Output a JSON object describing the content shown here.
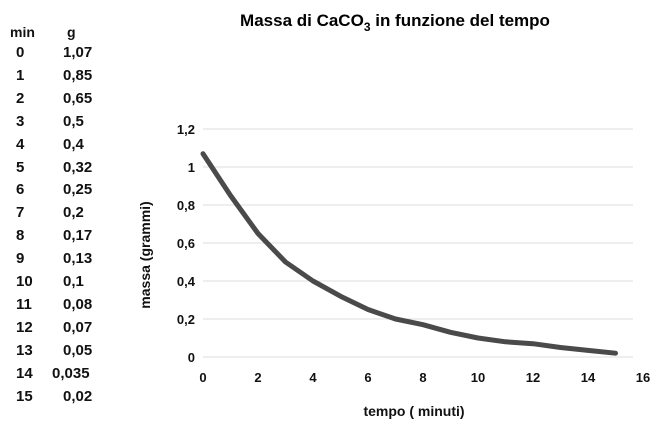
{
  "table": {
    "headers": [
      "min",
      "g"
    ],
    "rows": [
      [
        "0",
        "1,07"
      ],
      [
        "1",
        "0,85"
      ],
      [
        "2",
        "0,65"
      ],
      [
        "3",
        "0,5"
      ],
      [
        "4",
        "0,4"
      ],
      [
        "5",
        "0,32"
      ],
      [
        "6",
        "0,25"
      ],
      [
        "7",
        "0,2"
      ],
      [
        "8",
        "0,17"
      ],
      [
        "9",
        "0,13"
      ],
      [
        "10",
        "0,1"
      ],
      [
        "11",
        "0,08"
      ],
      [
        "12",
        "0,07"
      ],
      [
        "13",
        "0,05"
      ],
      [
        "14",
        "0,035"
      ],
      [
        "15",
        "0,02"
      ]
    ]
  },
  "chart_data": {
    "type": "line",
    "title_parts": [
      "Massa di CaCO",
      "3",
      " in funzione del tempo"
    ],
    "xlabel": "tempo ( minuti)",
    "ylabel": "massa (grammi)",
    "xlim": [
      0,
      16
    ],
    "ylim": [
      0,
      1.2
    ],
    "x_ticks": [
      "0",
      "2",
      "4",
      "6",
      "8",
      "10",
      "12",
      "14",
      "16"
    ],
    "y_ticks": [
      "0",
      "0,2",
      "0,4",
      "0,6",
      "0,8",
      "1",
      "1,2"
    ],
    "grid": "horizontal",
    "series": [
      {
        "x": [
          0,
          1,
          2,
          3,
          4,
          5,
          6,
          7,
          8,
          9,
          10,
          11,
          12,
          13,
          14,
          15
        ],
        "y": [
          1.07,
          0.85,
          0.65,
          0.5,
          0.4,
          0.32,
          0.25,
          0.2,
          0.17,
          0.13,
          0.1,
          0.08,
          0.07,
          0.05,
          0.035,
          0.02
        ],
        "color": "#4a4a4a"
      }
    ]
  }
}
